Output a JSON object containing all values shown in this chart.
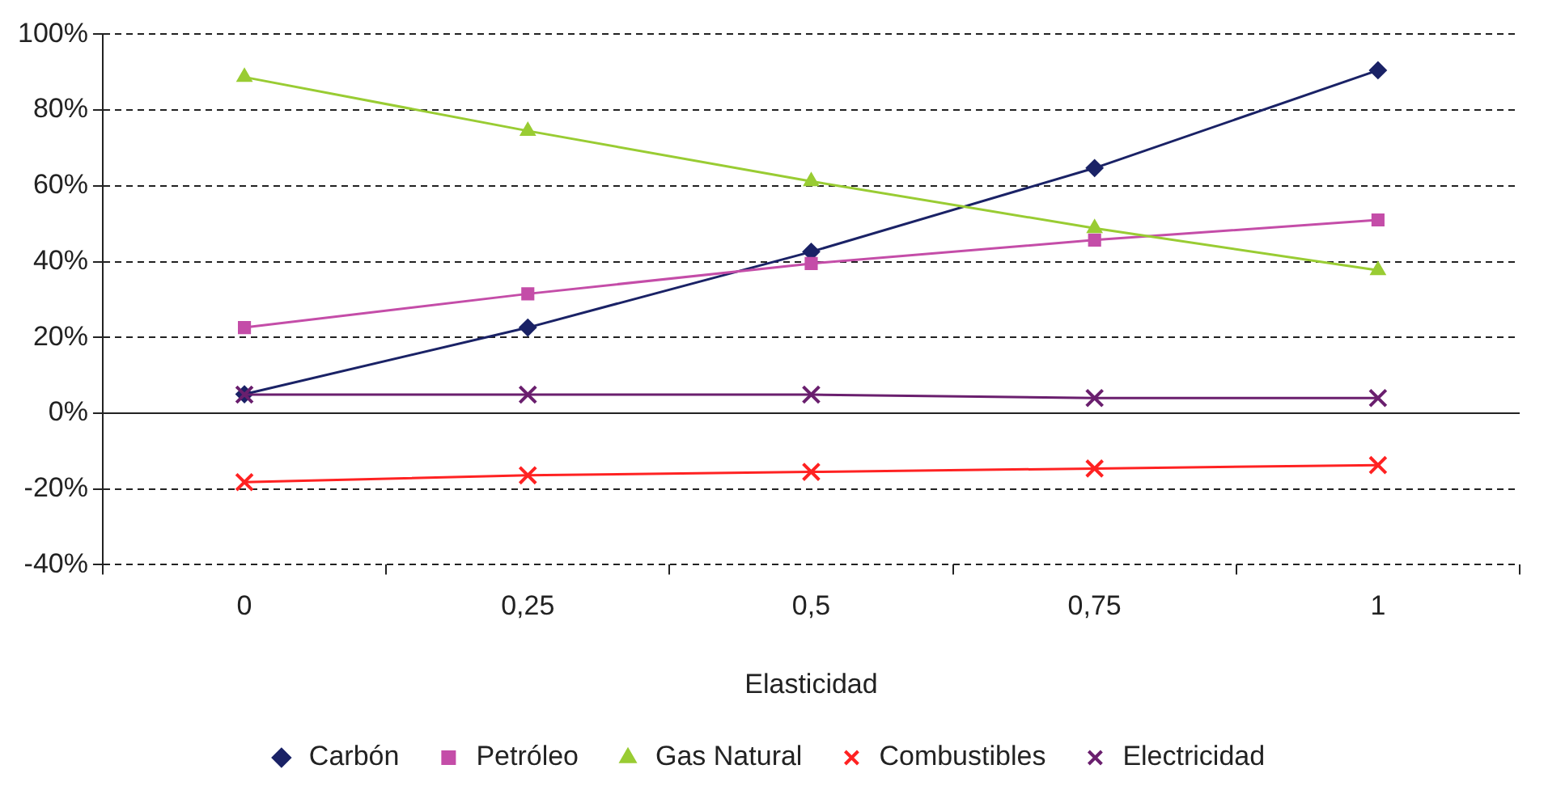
{
  "chart_data": {
    "type": "line",
    "xlabel": "Elasticidad",
    "categories": [
      "0",
      "0,25",
      "0,5",
      "0,75",
      "1"
    ],
    "ylim": [
      -40,
      100
    ],
    "yticks": [
      {
        "value": -40,
        "label": "-40%"
      },
      {
        "value": -20,
        "label": "-20%"
      },
      {
        "value": 0,
        "label": "0%"
      },
      {
        "value": 20,
        "label": "20%"
      },
      {
        "value": 40,
        "label": "40%"
      },
      {
        "value": 60,
        "label": "60%"
      },
      {
        "value": 80,
        "label": "80%"
      },
      {
        "value": 100,
        "label": "100%"
      }
    ],
    "grid": "y",
    "legend": "bottom",
    "line_style": "solid",
    "series": [
      {
        "name": "Carbón",
        "color": "#1a2266",
        "marker": "diamond",
        "values": [
          5,
          22.6,
          42.6,
          64.7,
          90.5
        ]
      },
      {
        "name": "Petróleo",
        "color": "#c44da8",
        "marker": "square",
        "values": [
          22.6,
          31.5,
          39.5,
          45.7,
          51
        ]
      },
      {
        "name": "Gas Natural",
        "color": "#99cc33",
        "marker": "triangle",
        "values": [
          88.7,
          74.5,
          61.2,
          48.8,
          37.7
        ]
      },
      {
        "name": "Combustibles",
        "color": "#ff2222",
        "marker": "cross",
        "values": [
          -18.2,
          -16.4,
          -15.5,
          -14.6,
          -13.7
        ]
      },
      {
        "name": "Electricidad",
        "color": "#6a1f6e",
        "marker": "cross",
        "values": [
          4.9,
          4.9,
          4.9,
          4,
          4
        ]
      }
    ]
  }
}
